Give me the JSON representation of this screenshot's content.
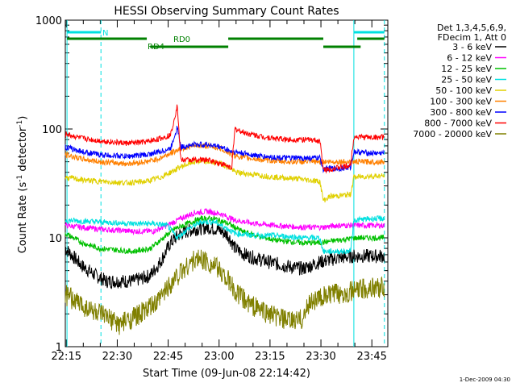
{
  "chart_data": {
    "type": "line",
    "title": "HESSI Observing Summary Count Rates",
    "xlabel": "Start Time (09-Jun-08 22:14:42)",
    "ylabel": "Count Rate (s⁻¹ detector⁻¹)",
    "ylabel_main": "Count Rate (s",
    "ylabel_sup1": "-1",
    "ylabel_mid": " detector",
    "ylabel_sup2": "-1",
    "ylabel_end": ")",
    "yscale": "log",
    "ylim": [
      1,
      1000
    ],
    "xlim_minutes": [
      0,
      95
    ],
    "x_tick_labels": [
      "22:15",
      "22:30",
      "22:45",
      "23:00",
      "23:15",
      "23:30",
      "23:45"
    ],
    "x_tick_minutes": [
      0.3,
      15.3,
      30.3,
      45.3,
      60.3,
      75.3,
      90.3
    ],
    "y_tick_labels": [
      "1",
      "10",
      "100",
      "1000"
    ],
    "y_tick_values": [
      1,
      10,
      100,
      1000
    ],
    "legend_header": [
      "Det 1,3,4,5,6,9,",
      "FDecim 1, Att 0"
    ],
    "legend_position": "right",
    "footer": "1-Dec-2009 04:30",
    "series": [
      {
        "name": "3 - 6 keV",
        "color": "#000000",
        "points": [
          [
            0,
            8
          ],
          [
            5,
            5.5
          ],
          [
            9,
            4.5
          ],
          [
            12,
            4
          ],
          [
            20,
            4
          ],
          [
            25,
            4.5
          ],
          [
            28,
            6
          ],
          [
            31,
            9
          ],
          [
            34,
            11
          ],
          [
            38,
            12
          ],
          [
            42,
            12.5
          ],
          [
            45,
            12
          ],
          [
            48,
            10.5
          ],
          [
            50,
            8
          ],
          [
            53,
            7
          ],
          [
            56,
            6.5
          ],
          [
            60,
            6
          ],
          [
            65,
            5.5
          ],
          [
            70,
            5.2
          ],
          [
            75,
            6
          ],
          [
            80,
            6.5
          ],
          [
            85,
            6.8
          ],
          [
            90,
            6.8
          ],
          [
            94,
            6.8
          ]
        ]
      },
      {
        "name": "6 - 12 keV",
        "color": "#ff00ff",
        "points": [
          [
            0,
            13
          ],
          [
            10,
            12
          ],
          [
            20,
            11.5
          ],
          [
            26,
            11.5
          ],
          [
            30,
            13
          ],
          [
            34,
            15
          ],
          [
            38,
            17
          ],
          [
            42,
            17.5
          ],
          [
            46,
            16.5
          ],
          [
            50,
            14.5
          ],
          [
            56,
            13.5
          ],
          [
            62,
            13
          ],
          [
            70,
            12.5
          ],
          [
            76,
            12.5
          ],
          [
            80,
            13
          ],
          [
            85,
            13
          ],
          [
            90,
            13
          ],
          [
            94,
            13
          ]
        ]
      },
      {
        "name": "12 - 25 keV",
        "color": "#00c000",
        "points": [
          [
            0,
            11
          ],
          [
            5,
            9
          ],
          [
            10,
            8
          ],
          [
            20,
            7.5
          ],
          [
            25,
            8
          ],
          [
            28,
            9.5
          ],
          [
            32,
            12
          ],
          [
            36,
            13.5
          ],
          [
            40,
            15
          ],
          [
            44,
            15
          ],
          [
            48,
            13.5
          ],
          [
            52,
            11.5
          ],
          [
            56,
            10.5
          ],
          [
            62,
            9.5
          ],
          [
            70,
            9
          ],
          [
            75,
            9
          ],
          [
            80,
            9.5
          ],
          [
            86,
            10
          ],
          [
            90,
            10
          ],
          [
            94,
            10
          ]
        ]
      },
      {
        "name": "25 - 50 keV",
        "color": "#00e0e0",
        "points": [
          [
            0,
            14.5
          ],
          [
            10,
            14
          ],
          [
            20,
            13.5
          ],
          [
            26,
            13.5
          ],
          [
            30,
            13
          ],
          [
            33,
            10
          ],
          [
            36,
            12
          ],
          [
            40,
            14
          ],
          [
            44,
            14
          ],
          [
            47,
            12.5
          ],
          [
            50,
            11
          ],
          [
            56,
            10.5
          ],
          [
            62,
            10.5
          ],
          [
            70,
            10
          ],
          [
            75,
            10
          ],
          [
            76,
            7.5
          ],
          [
            84,
            7.5
          ],
          [
            85,
            14.5
          ],
          [
            90,
            15
          ],
          [
            94,
            15
          ]
        ]
      },
      {
        "name": "50 - 100 keV",
        "color": "#e0d000",
        "points": [
          [
            0,
            36
          ],
          [
            5,
            34
          ],
          [
            10,
            33
          ],
          [
            18,
            32
          ],
          [
            24,
            33
          ],
          [
            28,
            36
          ],
          [
            31,
            40
          ],
          [
            34,
            45
          ],
          [
            38,
            50
          ],
          [
            42,
            50
          ],
          [
            46,
            48
          ],
          [
            49,
            43
          ],
          [
            50,
            40
          ],
          [
            56,
            38
          ],
          [
            62,
            36
          ],
          [
            68,
            35
          ],
          [
            75,
            33
          ],
          [
            76,
            22
          ],
          [
            78,
            24
          ],
          [
            84,
            25
          ],
          [
            85,
            36
          ],
          [
            90,
            37
          ],
          [
            94,
            37
          ]
        ]
      },
      {
        "name": "100 - 300 keV",
        "color": "#ff8000",
        "points": [
          [
            0,
            58
          ],
          [
            5,
            53
          ],
          [
            10,
            50
          ],
          [
            18,
            48
          ],
          [
            24,
            50
          ],
          [
            28,
            54
          ],
          [
            31,
            60
          ],
          [
            34,
            66
          ],
          [
            38,
            70
          ],
          [
            42,
            70
          ],
          [
            46,
            66
          ],
          [
            49,
            58
          ],
          [
            52,
            55
          ],
          [
            58,
            52
          ],
          [
            65,
            50
          ],
          [
            70,
            50
          ],
          [
            75,
            50
          ],
          [
            80,
            50
          ],
          [
            84,
            50
          ],
          [
            88,
            50
          ],
          [
            94,
            50
          ]
        ]
      },
      {
        "name": "300 - 800 keV",
        "color": "#0000ff",
        "points": [
          [
            0,
            68
          ],
          [
            5,
            62
          ],
          [
            10,
            58
          ],
          [
            18,
            56
          ],
          [
            24,
            58
          ],
          [
            28,
            62
          ],
          [
            31,
            66
          ],
          [
            33,
            105
          ],
          [
            34,
            68
          ],
          [
            38,
            72
          ],
          [
            42,
            72
          ],
          [
            46,
            68
          ],
          [
            49,
            62
          ],
          [
            52,
            60
          ],
          [
            58,
            56
          ],
          [
            65,
            54
          ],
          [
            70,
            54
          ],
          [
            75,
            54
          ],
          [
            76,
            43
          ],
          [
            84,
            44
          ],
          [
            85,
            62
          ],
          [
            90,
            60
          ],
          [
            94,
            60
          ]
        ]
      },
      {
        "name": "800 - 7000 keV",
        "color": "#ff0000",
        "points": [
          [
            0,
            90
          ],
          [
            5,
            82
          ],
          [
            10,
            78
          ],
          [
            18,
            74
          ],
          [
            24,
            76
          ],
          [
            28,
            82
          ],
          [
            31,
            88
          ],
          [
            33,
            165
          ],
          [
            34,
            52
          ],
          [
            38,
            52
          ],
          [
            42,
            52
          ],
          [
            46,
            48
          ],
          [
            49,
            44
          ],
          [
            50,
            100
          ],
          [
            53,
            92
          ],
          [
            58,
            85
          ],
          [
            65,
            80
          ],
          [
            70,
            80
          ],
          [
            75,
            78
          ],
          [
            76,
            42
          ],
          [
            84,
            46
          ],
          [
            85,
            85
          ],
          [
            90,
            84
          ],
          [
            94,
            84
          ]
        ]
      },
      {
        "name": "7000 - 20000 keV",
        "color": "#808000",
        "points": [
          [
            0,
            3
          ],
          [
            5,
            2.4
          ],
          [
            10,
            2
          ],
          [
            16,
            1.6
          ],
          [
            22,
            2
          ],
          [
            27,
            2.5
          ],
          [
            30,
            3.5
          ],
          [
            33,
            4.5
          ],
          [
            37,
            6
          ],
          [
            40,
            6.5
          ],
          [
            44,
            5.5
          ],
          [
            47,
            4.5
          ],
          [
            50,
            3.2
          ],
          [
            54,
            2.5
          ],
          [
            60,
            2
          ],
          [
            66,
            1.7
          ],
          [
            70,
            1.8
          ],
          [
            72,
            2.6
          ],
          [
            78,
            3
          ],
          [
            84,
            3.2
          ],
          [
            90,
            3.5
          ],
          [
            94,
            3.5
          ]
        ]
      }
    ],
    "state_bars": {
      "labels": [
        "N",
        "RD0",
        "RD4"
      ],
      "N_color": "#00e0e0",
      "RD_color": "#008000"
    },
    "vertical_markers_minutes": [
      0.5,
      10.5,
      85,
      94
    ],
    "vertical_solid_minutes": [
      0.5,
      85
    ]
  }
}
